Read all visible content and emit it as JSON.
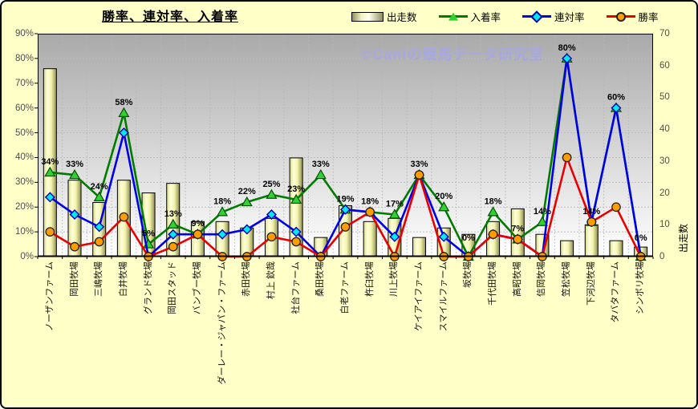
{
  "title": "勝率、連対率、入着率",
  "watermark": "©Caniの競馬データ研究室",
  "legend": [
    {
      "label": "出走数",
      "marker": "bar-swatch-icon"
    },
    {
      "label": "入着率",
      "marker": "triangle-marker-icon"
    },
    {
      "label": "連対率",
      "marker": "diamond-marker-icon"
    },
    {
      "label": "勝率",
      "marker": "circle-marker-icon"
    }
  ],
  "colors": {
    "background": "#ffffc8",
    "plot_top": "#a9a9a9",
    "plot_bottom": "#ffffff",
    "bar_fill": "#f2f2a8",
    "green_line": "#007c00",
    "green_marker": "#2fd32f",
    "blue_line": "#0000e8",
    "blue_marker": "#00e8f0",
    "red_line": "#e80000",
    "red_marker": "#ff9d00",
    "watermark": "#a8a8e0"
  },
  "chart_data": {
    "type": "bar",
    "subtype": "combo-bar-and-lines",
    "categories": [
      "ノーザンファーム",
      "岡田牧場",
      "三嶋牧場",
      "白井牧場",
      "グランド牧場",
      "岡田スタッド",
      "バンブー牧場",
      "ダーレー・ジャパン・ファーム",
      "赤田牧場",
      "村上 欽哉",
      "社台ファーム",
      "桑田牧場",
      "白老ファーム",
      "杵臼牧場",
      "川上牧場",
      "ケイアイファーム",
      "スマイルファーム",
      "坂牧場",
      "千代田牧場",
      "高昭牧場",
      "信岡牧場",
      "笠松牧場",
      "下河辺牧場",
      "タバタファーム",
      "シンボリ牧場"
    ],
    "series": [
      {
        "name": "出走数",
        "type": "bar",
        "axis": "right",
        "values": [
          59,
          24,
          17,
          24,
          20,
          23,
          11,
          11,
          9,
          12,
          31,
          6,
          16,
          11,
          12,
          6,
          9,
          7,
          11,
          15,
          7,
          5,
          10,
          5,
          3
        ]
      },
      {
        "name": "入着率",
        "type": "line",
        "marker": "triangle",
        "axis": "left",
        "show_labels": true,
        "values": [
          34,
          33,
          24,
          58,
          5,
          13,
          9,
          18,
          22,
          25,
          23,
          33,
          19,
          18,
          17,
          33,
          20,
          0,
          18,
          7,
          14,
          80,
          14,
          60,
          0
        ]
      },
      {
        "name": "連対率",
        "type": "line",
        "marker": "diamond",
        "axis": "left",
        "show_labels": false,
        "values": [
          24,
          17,
          12,
          50,
          0,
          9,
          9,
          9,
          11,
          17,
          10,
          0,
          19,
          18,
          8,
          33,
          8,
          0,
          9,
          7,
          0,
          80,
          14,
          60,
          0
        ]
      },
      {
        "name": "勝率",
        "type": "line",
        "marker": "circle",
        "axis": "left",
        "show_labels": false,
        "values": [
          10,
          4,
          6,
          16,
          0,
          4,
          9,
          0,
          0,
          8,
          6,
          0,
          12,
          18,
          0,
          33,
          0,
          0,
          9,
          7,
          0,
          40,
          14,
          20,
          0
        ]
      }
    ],
    "left_axis": {
      "min": 0,
      "max": 90,
      "ticks": [
        "0%",
        "10%",
        "20%",
        "30%",
        "40%",
        "50%",
        "60%",
        "70%",
        "80%",
        "90%"
      ]
    },
    "right_axis": {
      "min": 0,
      "max": 70,
      "ticks": [
        "0",
        "10",
        "20",
        "30",
        "40",
        "50",
        "60",
        "70"
      ],
      "label": "出走数"
    },
    "grid": true,
    "legend_position": "top"
  }
}
